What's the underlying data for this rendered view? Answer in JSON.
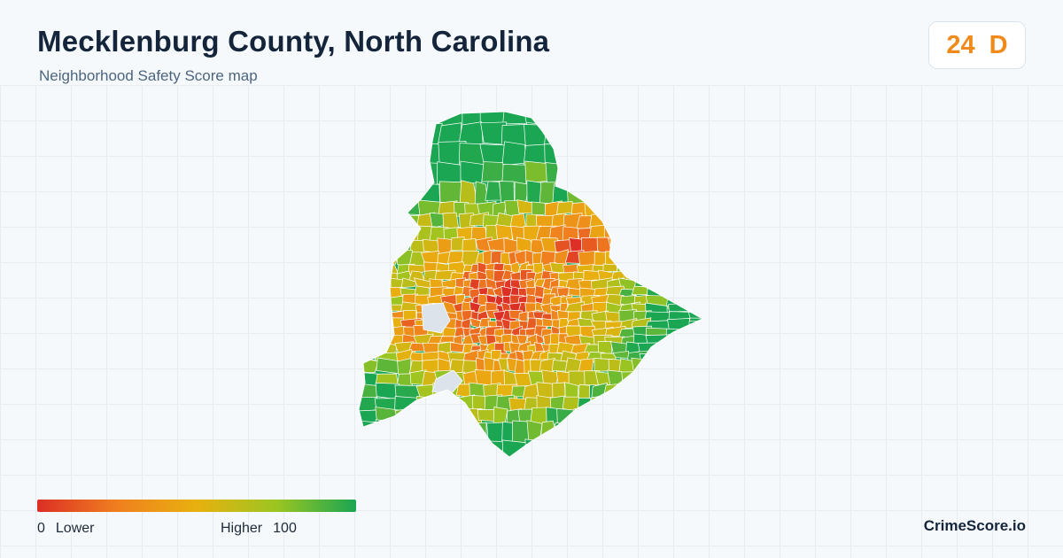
{
  "header": {
    "title": "Mecklenburg County, North Carolina",
    "subtitle": "Neighborhood Safety Score map"
  },
  "score_badge": {
    "score": "24",
    "grade": "D",
    "color": "#f08a1a"
  },
  "map": {
    "description_colors": {
      "low": "#dc2f25",
      "mid_low": "#f07f1f",
      "mid": "#e8b10f",
      "mid_high": "#9cc521",
      "high": "#1aa652",
      "no_data": "#dde3ea",
      "boundary": "#ffffff"
    }
  },
  "legend": {
    "min_value": "0",
    "min_label": "Lower",
    "max_label": "Higher",
    "max_value": "100",
    "gradient": [
      "#dc2f25",
      "#f07f1f",
      "#e8b10f",
      "#9cc521",
      "#1aa652"
    ]
  },
  "brand": {
    "name": "CrimeScore.io"
  }
}
